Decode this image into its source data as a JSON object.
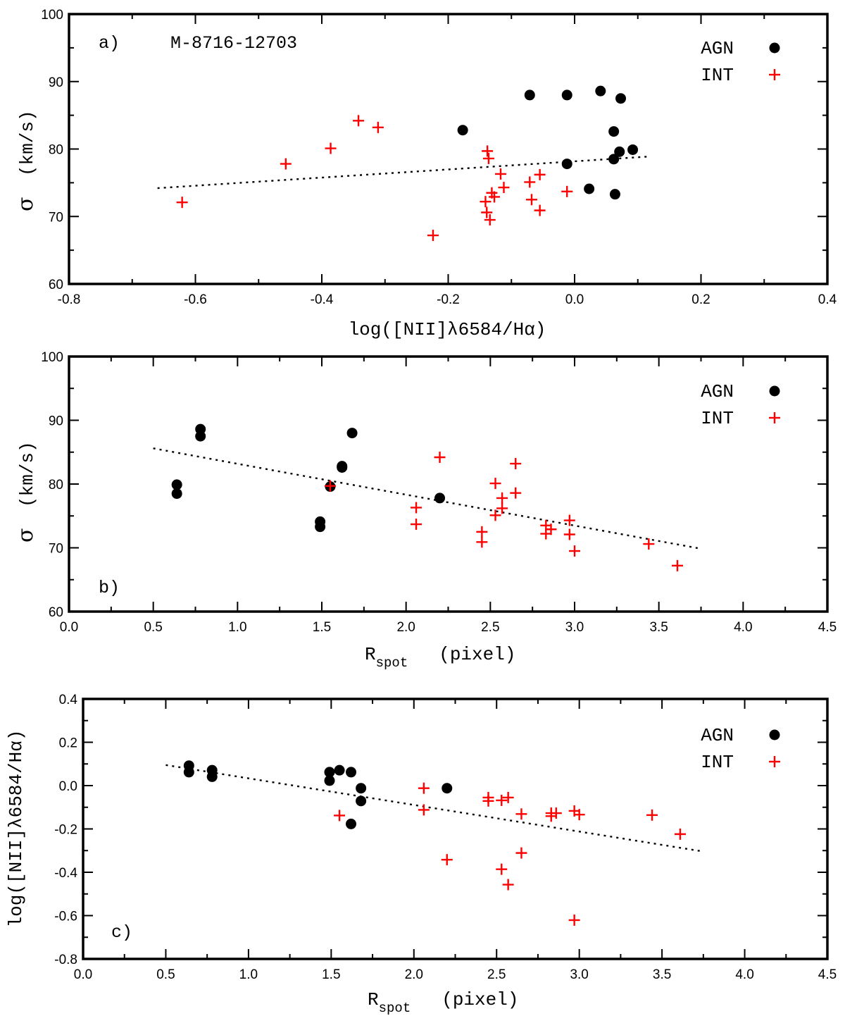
{
  "chart_data": [
    {
      "type": "scatter",
      "panel_label": "a)",
      "title": "M-8716-12703",
      "xlabel": "log([NII]λ6584/Hα)",
      "ylabel_symbol": "σ",
      "ylabel_units": "(km/s)",
      "xlim": [
        -0.8,
        0.4
      ],
      "ylim": [
        60,
        100
      ],
      "xticks": [
        -0.8,
        -0.6,
        -0.4,
        -0.2,
        0.0,
        0.2,
        0.4
      ],
      "xtick_labels": [
        "-0.8",
        "-0.6",
        "-0.4",
        "-0.2",
        "0.0",
        "0.2",
        "0.4"
      ],
      "yticks": [
        60,
        70,
        80,
        90,
        100
      ],
      "ytick_labels": [
        "60",
        "70",
        "80",
        "90",
        "100"
      ],
      "legend": [
        "AGN",
        "INT"
      ],
      "series": [
        {
          "name": "AGN",
          "marker": "circle",
          "color": "#000000",
          "x": [
            -0.177,
            -0.071,
            -0.012,
            0.041,
            0.073,
            0.062,
            0.071,
            0.092,
            0.062,
            -0.012,
            0.023,
            0.064
          ],
          "y": [
            82.8,
            88.0,
            88.0,
            88.6,
            87.5,
            82.6,
            79.6,
            79.9,
            78.5,
            77.8,
            74.1,
            73.3
          ]
        },
        {
          "name": "INT",
          "marker": "plus",
          "color": "#ff0000",
          "x": [
            -0.621,
            -0.457,
            -0.386,
            -0.342,
            -0.311,
            -0.138,
            -0.136,
            -0.117,
            -0.112,
            -0.131,
            -0.127,
            -0.141,
            -0.139,
            -0.134,
            -0.071,
            -0.055,
            -0.068,
            -0.055,
            -0.012,
            -0.224
          ],
          "y": [
            72.1,
            77.8,
            80.1,
            84.2,
            83.2,
            79.7,
            78.6,
            76.3,
            74.3,
            73.5,
            72.9,
            72.2,
            70.6,
            69.5,
            75.1,
            76.2,
            72.5,
            70.9,
            73.7,
            67.2
          ]
        }
      ],
      "fit_line": {
        "x": [
          -0.66,
          0.12
        ],
        "y": [
          74.2,
          78.9
        ]
      }
    },
    {
      "type": "scatter",
      "panel_label": "b)",
      "xlabel_main": "R",
      "xlabel_sub": "spot",
      "xlabel_units": "(pixel)",
      "ylabel_symbol": "σ",
      "ylabel_units": "(km/s)",
      "xlim": [
        0.0,
        4.5
      ],
      "ylim": [
        60,
        100
      ],
      "xticks": [
        0.0,
        0.5,
        1.0,
        1.5,
        2.0,
        2.5,
        3.0,
        3.5,
        4.0,
        4.5
      ],
      "xtick_labels": [
        "0.0",
        "0.5",
        "1.0",
        "1.5",
        "2.0",
        "2.5",
        "3.0",
        "3.5",
        "4.0",
        "4.5"
      ],
      "yticks": [
        60,
        70,
        80,
        90,
        100
      ],
      "ytick_labels": [
        "60",
        "70",
        "80",
        "90",
        "100"
      ],
      "legend": [
        "AGN",
        "INT"
      ],
      "series": [
        {
          "name": "AGN",
          "marker": "circle",
          "color": "#000000",
          "x": [
            0.64,
            0.64,
            0.78,
            0.78,
            1.49,
            1.49,
            1.55,
            1.62,
            1.62,
            1.68,
            2.2
          ],
          "y": [
            79.9,
            78.5,
            88.6,
            87.5,
            74.1,
            73.3,
            79.6,
            82.8,
            82.6,
            88.0,
            77.8
          ]
        },
        {
          "name": "INT",
          "marker": "plus",
          "color": "#ff0000",
          "x": [
            1.55,
            2.06,
            2.06,
            2.2,
            2.45,
            2.45,
            2.53,
            2.53,
            2.57,
            2.57,
            2.65,
            2.65,
            2.83,
            2.83,
            2.86,
            2.97,
            2.97,
            3.0,
            3.44,
            3.61
          ],
          "y": [
            79.7,
            76.3,
            73.7,
            84.2,
            72.5,
            70.9,
            80.1,
            75.1,
            77.8,
            76.2,
            83.2,
            78.6,
            73.5,
            72.2,
            72.9,
            74.3,
            72.1,
            69.5,
            70.6,
            67.2
          ]
        }
      ],
      "fit_line": {
        "x": [
          0.5,
          3.74
        ],
        "y": [
          85.6,
          69.9
        ]
      }
    },
    {
      "type": "scatter",
      "panel_label": "c)",
      "xlabel_main": "R",
      "xlabel_sub": "spot",
      "xlabel_units": "(pixel)",
      "ylabel": "log([NII]λ6584/Hα)",
      "xlim": [
        0.0,
        4.5
      ],
      "ylim": [
        -0.8,
        0.4
      ],
      "xticks": [
        0.0,
        0.5,
        1.0,
        1.5,
        2.0,
        2.5,
        3.0,
        3.5,
        4.0,
        4.5
      ],
      "xtick_labels": [
        "0.0",
        "0.5",
        "1.0",
        "1.5",
        "2.0",
        "2.5",
        "3.0",
        "3.5",
        "4.0",
        "4.5"
      ],
      "yticks": [
        -0.8,
        -0.6,
        -0.4,
        -0.2,
        0.0,
        0.2,
        0.4
      ],
      "ytick_labels": [
        "-0.8",
        "-0.6",
        "-0.4",
        "-0.2",
        "0.0",
        "0.2",
        "0.4"
      ],
      "legend": [
        "AGN",
        "INT"
      ],
      "series": [
        {
          "name": "AGN",
          "marker": "circle",
          "color": "#000000",
          "x": [
            0.64,
            0.64,
            0.78,
            0.78,
            1.49,
            1.49,
            1.55,
            1.62,
            1.62,
            1.68,
            1.68,
            2.2
          ],
          "y": [
            0.092,
            0.062,
            0.071,
            0.041,
            0.062,
            0.023,
            0.071,
            0.062,
            -0.177,
            -0.012,
            -0.071,
            -0.012
          ]
        },
        {
          "name": "INT",
          "marker": "plus",
          "color": "#ff0000",
          "x": [
            1.55,
            2.06,
            2.06,
            2.2,
            2.45,
            2.45,
            2.53,
            2.53,
            2.57,
            2.57,
            2.65,
            2.65,
            2.83,
            2.83,
            2.86,
            2.97,
            2.97,
            3.0,
            3.44,
            3.61
          ],
          "y": [
            -0.138,
            -0.012,
            -0.112,
            -0.342,
            -0.055,
            -0.071,
            -0.068,
            -0.386,
            -0.055,
            -0.457,
            -0.131,
            -0.311,
            -0.127,
            -0.141,
            -0.127,
            -0.117,
            -0.621,
            -0.134,
            -0.136,
            -0.224
          ]
        }
      ],
      "fit_line": {
        "x": [
          0.5,
          3.74
        ],
        "y": [
          0.095,
          -0.303
        ]
      }
    }
  ]
}
